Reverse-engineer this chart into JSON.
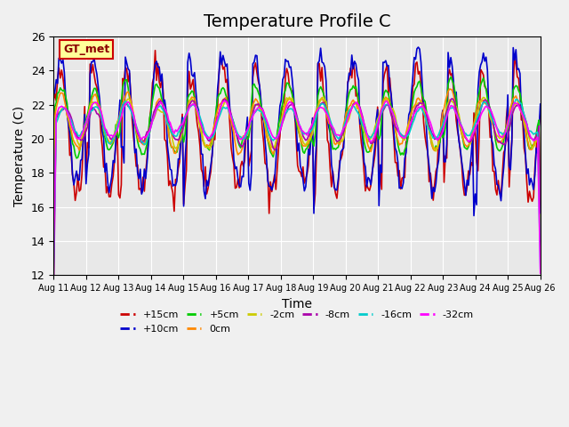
{
  "title": "Temperature Profile C",
  "xlabel": "Time",
  "ylabel": "Temperature (C)",
  "ylim": [
    12,
    26
  ],
  "yticks": [
    12,
    14,
    16,
    18,
    20,
    22,
    24,
    26
  ],
  "xlim": [
    0,
    360
  ],
  "n_points": 360,
  "series_colors": {
    "+15cm": "#cc0000",
    "+10cm": "#0000cc",
    "+5cm": "#00cc00",
    "0cm": "#ff8800",
    "-2cm": "#cccc00",
    "-8cm": "#aa00aa",
    "-16cm": "#00cccc",
    "-32cm": "#ff00ff"
  },
  "legend_label": "GT_met",
  "legend_box_color": "#ffff99",
  "legend_box_edge": "#cc0000",
  "background_color": "#e8e8e8",
  "axes_background": "#e8e8e8",
  "grid_color": "#ffffff",
  "title_fontsize": 14,
  "label_fontsize": 10
}
